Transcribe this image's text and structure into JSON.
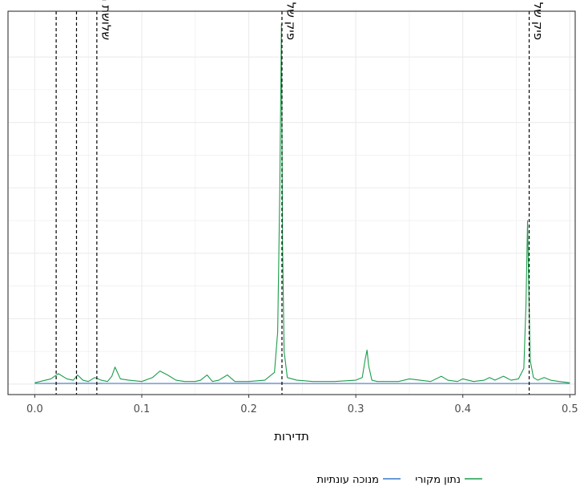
{
  "chart_data": {
    "type": "line",
    "title": "",
    "xlabel": "תדירות",
    "ylabel": "",
    "xlim": [
      -0.025,
      0.505
    ],
    "ylim": [
      -0.8,
      28.5
    ],
    "x_ticks": [
      "0.0",
      "0.1",
      "0.2",
      "0.3",
      "0.4",
      "0.5"
    ],
    "y_gridlines": [
      0,
      5,
      10,
      15,
      20,
      25
    ],
    "grid": true,
    "legend_position": "bottom",
    "series": [
      {
        "name": "נתון מקורי",
        "color": "#1b9e4a",
        "x": [
          0.0,
          0.015,
          0.022,
          0.03,
          0.036,
          0.04,
          0.045,
          0.05,
          0.056,
          0.062,
          0.068,
          0.072,
          0.075,
          0.08,
          0.088,
          0.1,
          0.11,
          0.117,
          0.124,
          0.132,
          0.14,
          0.15,
          0.155,
          0.161,
          0.166,
          0.172,
          0.18,
          0.187,
          0.2,
          0.215,
          0.224,
          0.227,
          0.229,
          0.2305,
          0.2315,
          0.233,
          0.236,
          0.245,
          0.26,
          0.28,
          0.3,
          0.306,
          0.309,
          0.3105,
          0.312,
          0.315,
          0.32,
          0.34,
          0.35,
          0.36,
          0.37,
          0.38,
          0.386,
          0.395,
          0.4,
          0.41,
          0.42,
          0.425,
          0.43,
          0.438,
          0.445,
          0.452,
          0.457,
          0.459,
          0.4605,
          0.4615,
          0.463,
          0.466,
          0.47,
          0.476,
          0.482,
          0.49,
          0.5
        ],
        "y": [
          0.1,
          0.4,
          0.8,
          0.4,
          0.3,
          0.7,
          0.3,
          0.2,
          0.5,
          0.3,
          0.2,
          0.6,
          1.3,
          0.4,
          0.3,
          0.2,
          0.5,
          1.0,
          0.7,
          0.3,
          0.2,
          0.2,
          0.3,
          0.7,
          0.2,
          0.3,
          0.7,
          0.2,
          0.2,
          0.3,
          0.9,
          4.0,
          15.0,
          27.5,
          11.0,
          2.5,
          0.5,
          0.3,
          0.2,
          0.2,
          0.3,
          0.5,
          2.0,
          2.6,
          1.4,
          0.3,
          0.2,
          0.2,
          0.4,
          0.3,
          0.2,
          0.6,
          0.3,
          0.2,
          0.4,
          0.2,
          0.3,
          0.5,
          0.3,
          0.6,
          0.3,
          0.4,
          1.2,
          6.0,
          12.5,
          8.0,
          1.8,
          0.5,
          0.3,
          0.5,
          0.3,
          0.2,
          0.1
        ]
      },
      {
        "name": "מנוכה עונתיות",
        "color": "#3a78c9",
        "x": [
          0.0,
          0.05,
          0.1,
          0.15,
          0.2,
          0.25,
          0.3,
          0.35,
          0.4,
          0.45,
          0.5
        ],
        "y": [
          0.05,
          0.06,
          0.05,
          0.05,
          0.06,
          0.05,
          0.05,
          0.05,
          0.05,
          0.05,
          0.05
        ]
      }
    ],
    "vlines": [
      {
        "x": 0.02
      },
      {
        "x": 0.039
      },
      {
        "x": 0.058
      },
      {
        "x": 0.231
      },
      {
        "x": 0.462
      }
    ],
    "annotations": [
      {
        "x": 0.063,
        "text": "שלושת הפיקים הראשונים של המחזור התוך שנתי"
      },
      {
        "x": 0.236,
        "text": "פיק של המחזור התוך חודשי"
      },
      {
        "x": 0.467,
        "text": "פיק של המחזור התוך חודשי"
      }
    ],
    "styles": {
      "grid_color": "#ebebeb",
      "annotation_line_color": "#000000",
      "panel_border": "#333333"
    }
  }
}
